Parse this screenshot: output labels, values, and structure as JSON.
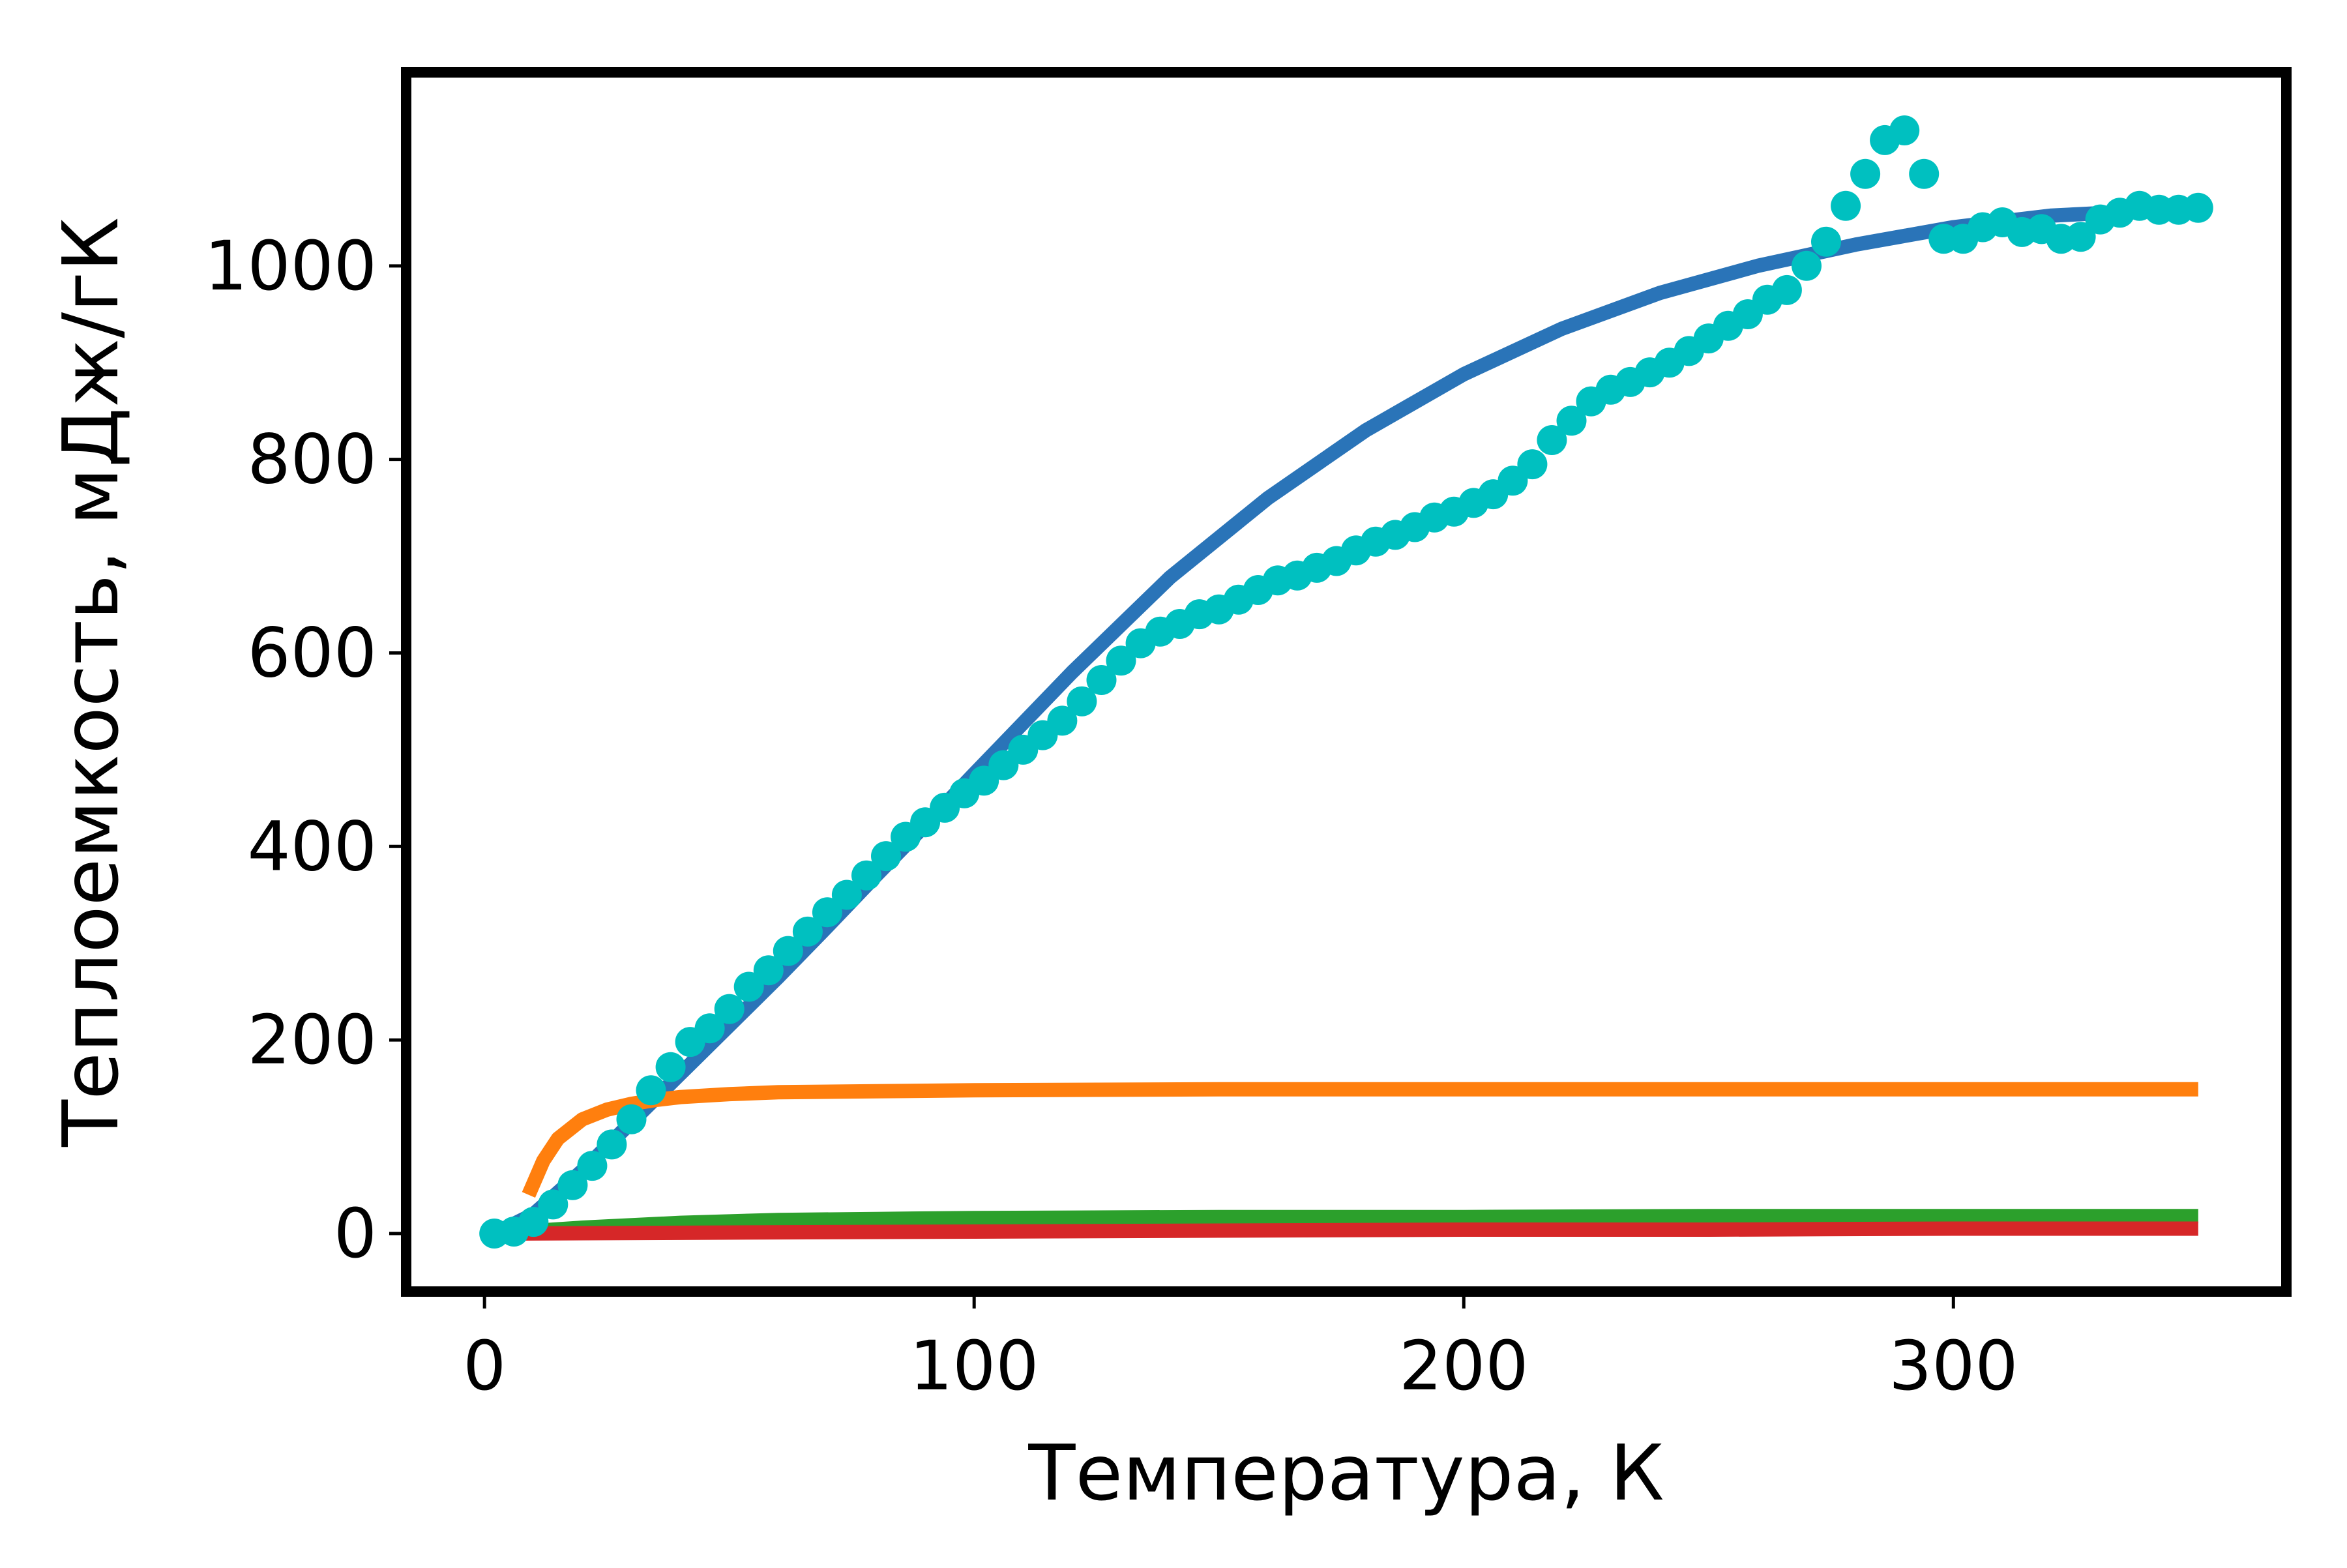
{
  "chart_data": {
    "type": "line",
    "xlabel": "Температура, К",
    "ylabel": "Теплоемкость, мДж/гК",
    "xlim": [
      -16,
      368
    ],
    "ylim": [
      -60,
      1200
    ],
    "xticks": [
      0,
      100,
      200,
      300
    ],
    "yticks": [
      0,
      200,
      400,
      600,
      800,
      1000
    ],
    "xtick_labels": [
      "0",
      "100",
      "200",
      "300"
    ],
    "ytick_labels": [
      "0",
      "200",
      "400",
      "600",
      "800",
      "1000"
    ],
    "grid": false,
    "legend": "none",
    "series": [
      {
        "style": "line",
        "color": "#2a74b8",
        "x": [
          2,
          10,
          20,
          30,
          40,
          50,
          60,
          70,
          80,
          90,
          100,
          120,
          140,
          160,
          180,
          200,
          220,
          240,
          260,
          280,
          300,
          320,
          340,
          350
        ],
        "y": [
          0,
          20,
          65,
          115,
          165,
          215,
          265,
          317,
          370,
          422,
          475,
          580,
          678,
          760,
          830,
          888,
          935,
          972,
          1000,
          1022,
          1040,
          1052,
          1057,
          1058
        ]
      },
      {
        "style": "line",
        "color": "#ff7f0e",
        "x": [
          9,
          12,
          15,
          20,
          25,
          30,
          35,
          40,
          50,
          60,
          80,
          100,
          150,
          200,
          250,
          300,
          350
        ],
        "y": [
          40,
          75,
          98,
          118,
          128,
          134,
          138,
          141,
          144,
          146,
          147,
          148,
          149,
          149,
          149,
          149,
          149
        ]
      },
      {
        "style": "line",
        "color": "#2ca02c",
        "x": [
          5,
          20,
          40,
          60,
          80,
          100,
          150,
          200,
          250,
          300,
          350
        ],
        "y": [
          1,
          6,
          11,
          14,
          15,
          16,
          17,
          17,
          18,
          18,
          18
        ]
      },
      {
        "style": "line",
        "color": "#d62728",
        "x": [
          5,
          50,
          100,
          150,
          200,
          250,
          300,
          350
        ],
        "y": [
          0,
          1,
          2,
          3,
          4,
          4,
          5,
          5
        ]
      },
      {
        "style": "markers",
        "color": "#00c0c0",
        "x": [
          2,
          6,
          10,
          14,
          18,
          22,
          26,
          30,
          34,
          38,
          42,
          46,
          50,
          54,
          58,
          62,
          66,
          70,
          74,
          78,
          82,
          86,
          90,
          94,
          98,
          102,
          106,
          110,
          114,
          118,
          122,
          126,
          130,
          134,
          138,
          142,
          146,
          150,
          154,
          158,
          162,
          166,
          170,
          174,
          178,
          182,
          186,
          190,
          194,
          198,
          202,
          206,
          210,
          214,
          218,
          222,
          226,
          230,
          234,
          238,
          242,
          246,
          250,
          254,
          258,
          262,
          266,
          270,
          274,
          278,
          282,
          286,
          290,
          294,
          298,
          302,
          306,
          310,
          314,
          318,
          322,
          326,
          330,
          334,
          338,
          342,
          346,
          350
        ],
        "y": [
          0,
          2,
          12,
          30,
          50,
          70,
          92,
          118,
          148,
          172,
          198,
          212,
          232,
          255,
          272,
          292,
          312,
          332,
          350,
          370,
          390,
          410,
          425,
          440,
          455,
          468,
          484,
          500,
          515,
          530,
          550,
          572,
          592,
          610,
          622,
          630,
          640,
          645,
          655,
          665,
          675,
          680,
          688,
          695,
          706,
          715,
          722,
          730,
          740,
          746,
          755,
          764,
          778,
          795,
          820,
          840,
          860,
          872,
          880,
          890,
          900,
          912,
          925,
          938,
          950,
          965,
          975,
          1000,
          1025,
          1062,
          1095,
          1130,
          1140,
          1095,
          1028,
          1028,
          1040,
          1045,
          1035,
          1038,
          1028,
          1030,
          1048,
          1055,
          1062,
          1058,
          1058,
          1060
        ]
      }
    ]
  }
}
